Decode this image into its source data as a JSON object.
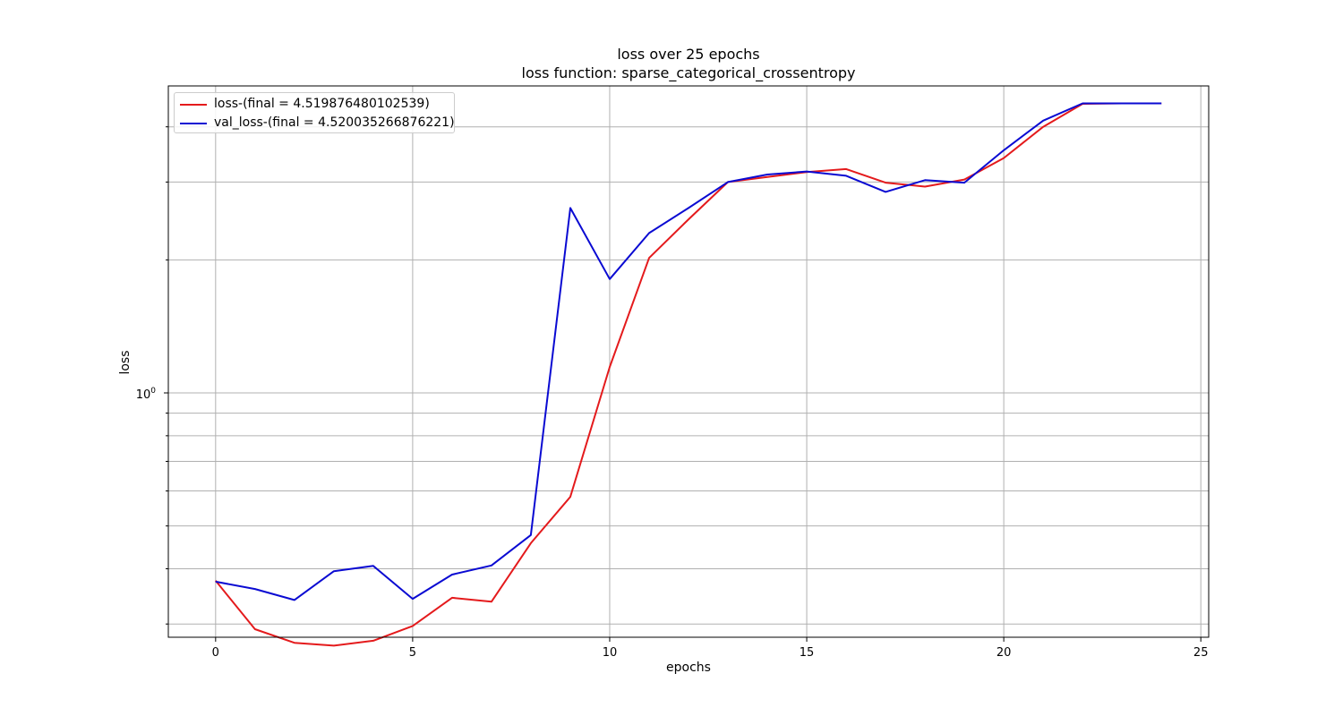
{
  "chart_data": {
    "type": "line",
    "title": "loss over 25 epochs",
    "subtitle": "loss function: sparse_categorical_crossentropy",
    "xlabel": "epochs",
    "ylabel": "loss",
    "yscale": "log",
    "xlim": [
      -1.2,
      25.2
    ],
    "ylim": [
      0.28,
      4.95
    ],
    "xticks": [
      0,
      5,
      10,
      15,
      20,
      25
    ],
    "yticks_major": [
      {
        "value": 1,
        "label": "10",
        "exp": "0"
      }
    ],
    "yticks_minor": [
      0.3,
      0.4,
      0.5,
      0.6,
      0.7,
      0.8,
      0.9,
      2,
      3,
      4
    ],
    "grid": true,
    "legend_position": "top-left",
    "x": [
      0,
      1,
      2,
      3,
      4,
      5,
      6,
      7,
      8,
      9,
      10,
      11,
      12,
      13,
      14,
      15,
      16,
      17,
      18,
      19,
      20,
      21,
      22,
      23,
      24
    ],
    "series": [
      {
        "name": "loss",
        "legend_label": "loss-(final = 4.519876480102539)",
        "color": "#e41a1c",
        "values": [
          0.376,
          0.292,
          0.272,
          0.268,
          0.275,
          0.297,
          0.344,
          0.337,
          0.457,
          0.582,
          1.145,
          2.02,
          2.47,
          3.0,
          3.08,
          3.16,
          3.21,
          2.99,
          2.93,
          3.04,
          3.4,
          4.0,
          4.51,
          4.52,
          4.52
        ]
      },
      {
        "name": "val_loss",
        "legend_label": "val_loss-(final = 4.520035266876221)",
        "color": "#0a0ad2",
        "values": [
          0.374,
          0.36,
          0.34,
          0.395,
          0.406,
          0.342,
          0.388,
          0.407,
          0.477,
          2.62,
          1.81,
          2.3,
          2.62,
          3.0,
          3.12,
          3.17,
          3.1,
          2.85,
          3.03,
          2.99,
          3.54,
          4.13,
          4.52,
          4.52,
          4.52
        ]
      }
    ]
  }
}
